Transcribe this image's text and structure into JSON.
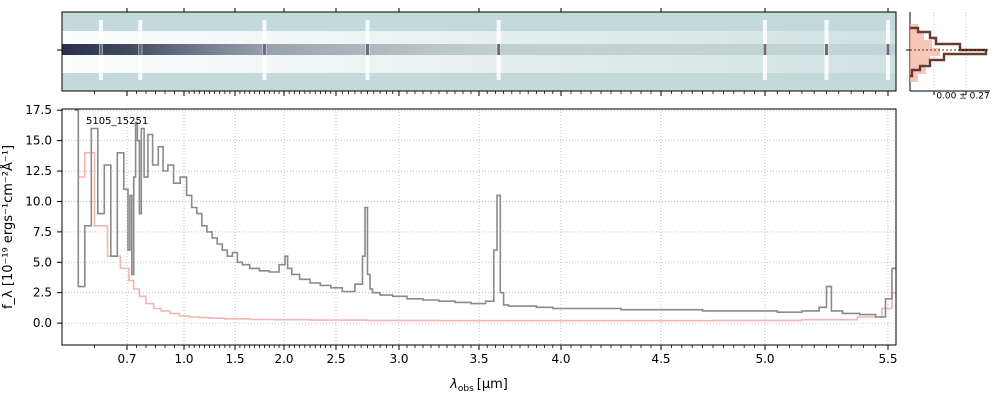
{
  "chart_data": [
    {
      "type": "heatmap",
      "panel": "2D spectrum",
      "colormap": [
        "#c4d9d9",
        "#ffffff",
        "#1f2540"
      ],
      "features_x": [
        0.66,
        0.77,
        1.8,
        2.75,
        3.62,
        5.0,
        5.25,
        5.5
      ]
    },
    {
      "type": "line",
      "panel": "cross-dispersion profile",
      "annotation": "0.00 ± 0.27",
      "colors": {
        "profile": "#6b3a2e",
        "fill": "#f4b8a8"
      }
    },
    {
      "type": "line",
      "panel": "1D spectrum",
      "object_label": "5105_15251",
      "xlabel_main": "λ",
      "xlabel_sub": "obs",
      "xlabel_unit": "[μm]",
      "ylabel": "f_λ [10⁻¹⁹ ergs⁻¹cm⁻²Å⁻¹]",
      "x_scale": "custom (compressed at long wavelengths)",
      "xlim": [
        0.6,
        5.52
      ],
      "ylim": [
        -1.8,
        17.6
      ],
      "x_ticks": [
        "0.7",
        "1.0",
        "1.5",
        "2.0",
        "2.5",
        "3.0",
        "3.5",
        "4.0",
        "4.5",
        "5.0",
        "5.5"
      ],
      "x_tick_values": [
        0.7,
        1.0,
        1.5,
        2.0,
        2.5,
        3.0,
        3.5,
        4.0,
        4.5,
        5.0,
        5.5
      ],
      "y_ticks": [
        "0.0",
        "2.5",
        "5.0",
        "7.5",
        "10.0",
        "12.5",
        "15.0",
        "17.5"
      ],
      "y_tick_values": [
        0,
        2.5,
        5.0,
        7.5,
        10.0,
        12.5,
        15.0,
        17.5
      ],
      "grid": true,
      "series": [
        {
          "role": "flux",
          "color": "#8a8a8a",
          "x": [
            0.62,
            0.63,
            0.64,
            0.65,
            0.66,
            0.67,
            0.68,
            0.69,
            0.7,
            0.71,
            0.72,
            0.73,
            0.74,
            0.75,
            0.76,
            0.77,
            0.78,
            0.8,
            0.82,
            0.85,
            0.88,
            0.9,
            0.93,
            0.96,
            1.0,
            1.05,
            1.1,
            1.15,
            1.2,
            1.25,
            1.3,
            1.35,
            1.4,
            1.45,
            1.5,
            1.55,
            1.6,
            1.7,
            1.8,
            1.9,
            2.0,
            2.02,
            2.05,
            2.1,
            2.2,
            2.3,
            2.4,
            2.5,
            2.6,
            2.7,
            2.72,
            2.74,
            2.76,
            2.78,
            2.8,
            2.9,
            3.0,
            3.1,
            3.2,
            3.3,
            3.4,
            3.5,
            3.58,
            3.6,
            3.62,
            3.64,
            3.66,
            3.7,
            3.8,
            3.9,
            4.0,
            4.2,
            4.4,
            4.6,
            4.8,
            5.0,
            5.1,
            5.2,
            5.24,
            5.26,
            5.28,
            5.35,
            5.42,
            5.48,
            5.5,
            5.52
          ],
          "y": [
            17.5,
            3.0,
            8.0,
            16.0,
            9.0,
            13.0,
            5.5,
            14.0,
            11.0,
            6.0,
            10.5,
            4.0,
            12.0,
            16.5,
            15.0,
            9.0,
            16.0,
            12.0,
            15.5,
            13.0,
            14.5,
            12.5,
            13.0,
            11.5,
            12.0,
            10.5,
            9.5,
            9.0,
            8.0,
            7.5,
            7.0,
            6.5,
            6.0,
            5.5,
            5.8,
            5.0,
            4.8,
            4.5,
            4.3,
            4.2,
            4.8,
            5.5,
            4.5,
            4.0,
            3.6,
            3.3,
            3.1,
            2.9,
            2.6,
            3.2,
            5.5,
            9.5,
            4.0,
            2.8,
            2.5,
            2.3,
            2.2,
            2.0,
            1.9,
            1.8,
            1.7,
            1.6,
            1.8,
            6.0,
            10.5,
            2.5,
            1.5,
            1.4,
            1.4,
            1.3,
            1.2,
            1.2,
            1.1,
            1.1,
            1.0,
            1.0,
            0.9,
            1.0,
            1.3,
            3.0,
            1.0,
            0.8,
            0.7,
            0.5,
            2.0,
            4.5
          ]
        },
        {
          "role": "uncertainty",
          "color": "#f5b5b0",
          "x": [
            0.62,
            0.63,
            0.64,
            0.66,
            0.68,
            0.7,
            0.72,
            0.75,
            0.78,
            0.82,
            0.86,
            0.9,
            0.95,
            1.0,
            1.1,
            1.2,
            1.3,
            1.5,
            1.8,
            2.0,
            2.5,
            3.0,
            3.5,
            4.0,
            4.5,
            5.0,
            5.3,
            5.45,
            5.5,
            5.52
          ],
          "y": [
            17.5,
            12.0,
            14.0,
            8.0,
            5.5,
            4.5,
            3.5,
            2.8,
            2.2,
            1.6,
            1.2,
            1.0,
            0.8,
            0.6,
            0.5,
            0.45,
            0.4,
            0.35,
            0.3,
            0.28,
            0.25,
            0.22,
            0.2,
            0.2,
            0.2,
            0.22,
            0.28,
            0.5,
            1.2,
            2.5
          ]
        }
      ]
    }
  ]
}
